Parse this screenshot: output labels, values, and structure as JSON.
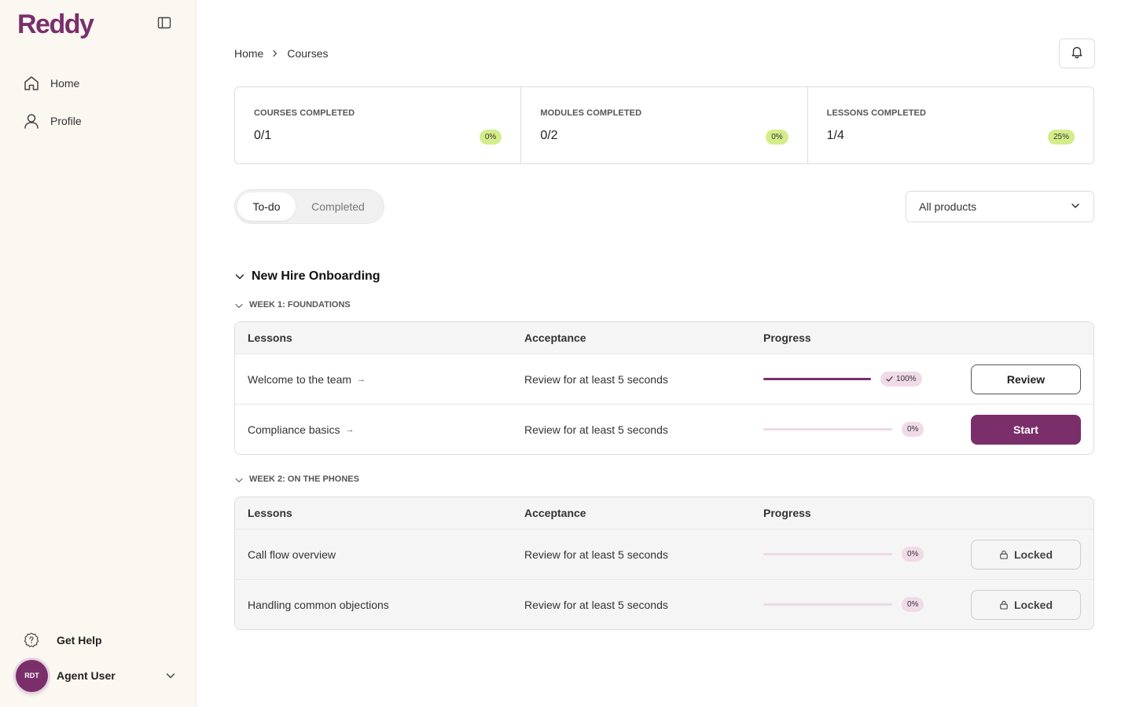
{
  "app": {
    "logo": "Reddy"
  },
  "sidebar": {
    "nav": [
      {
        "label": "Home",
        "icon": "home-icon"
      },
      {
        "label": "Profile",
        "icon": "user-icon"
      }
    ],
    "help_label": "Get Help",
    "user": {
      "initials": "RDT",
      "name": "Agent User"
    }
  },
  "breadcrumb": {
    "home": "Home",
    "current": "Courses"
  },
  "stats": [
    {
      "title": "COURSES COMPLETED",
      "value": "0/1",
      "percent": "0%"
    },
    {
      "title": "MODULES COMPLETED",
      "value": "0/2",
      "percent": "0%"
    },
    {
      "title": "LESSONS COMPLETED",
      "value": "1/4",
      "percent": "25%"
    }
  ],
  "tabs": {
    "todo": "To-do",
    "completed": "Completed",
    "active": "To-do"
  },
  "filter": {
    "selected": "All products"
  },
  "course": {
    "title": "New Hire Onboarding",
    "weeks": [
      {
        "title": "WEEK 1: FOUNDATIONS",
        "headers": {
          "lessons": "Lessons",
          "acceptance": "Acceptance",
          "progress": "Progress"
        },
        "lessons": [
          {
            "name": "Welcome to the team",
            "acceptance": "Review for at least 5 seconds",
            "progress": 100,
            "progress_label": "100%",
            "action": "Review"
          },
          {
            "name": "Compliance basics",
            "acceptance": "Review for at least 5 seconds",
            "progress": 0,
            "progress_label": "0%",
            "action": "Start"
          }
        ]
      },
      {
        "title": "WEEK 2: ON THE PHONES",
        "headers": {
          "lessons": "Lessons",
          "acceptance": "Acceptance",
          "progress": "Progress"
        },
        "lessons": [
          {
            "name": "Call flow overview",
            "acceptance": "Review for at least 5 seconds",
            "progress": 0,
            "progress_label": "0%",
            "action": "Locked"
          },
          {
            "name": "Handling common objections",
            "acceptance": "Review for at least 5 seconds",
            "progress": 0,
            "progress_label": "0%",
            "action": "Locked"
          }
        ]
      }
    ]
  },
  "colors": {
    "brand": "#7a2f6b",
    "success_pill": "#d4ed8a",
    "progress_pill": "#f0dae8",
    "sidebar_bg": "#fbf7f1"
  }
}
